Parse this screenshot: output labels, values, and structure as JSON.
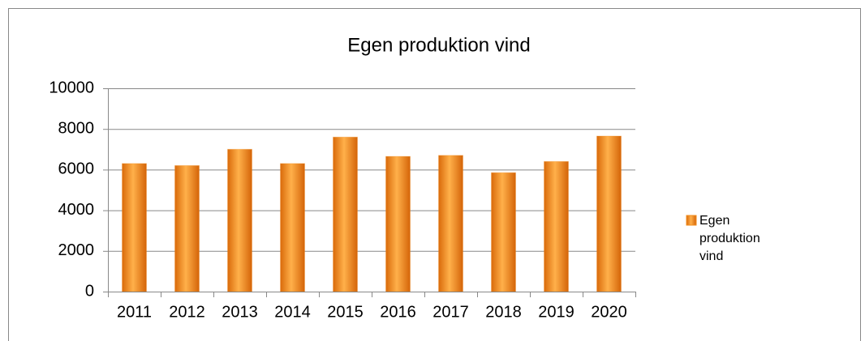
{
  "chart_data": {
    "type": "bar",
    "title": "Egen produktion vind",
    "categories": [
      "2011",
      "2012",
      "2013",
      "2014",
      "2015",
      "2016",
      "2017",
      "2018",
      "2019",
      "2020"
    ],
    "series": [
      {
        "name": "Egen produktion vind",
        "color": "#f28c1c",
        "values": [
          6300,
          6200,
          7000,
          6300,
          7600,
          6650,
          6700,
          5850,
          6400,
          7650
        ]
      }
    ],
    "ylim": [
      0,
      10000
    ],
    "yticks": [
      0,
      2000,
      4000,
      6000,
      8000,
      10000
    ],
    "grid": true,
    "legend": "right"
  }
}
